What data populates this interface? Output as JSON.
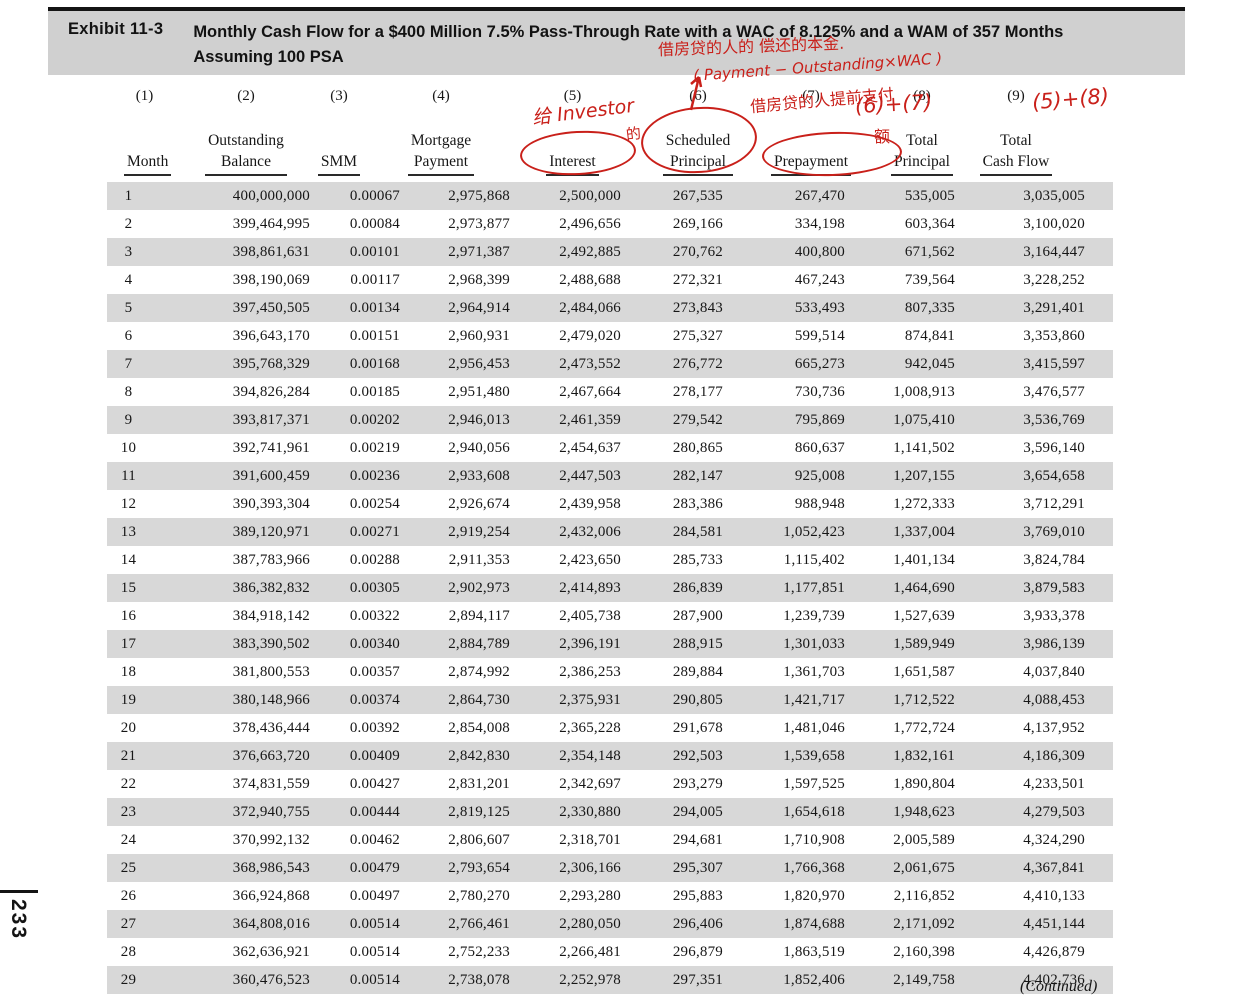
{
  "page": {
    "exhibit_label": "Exhibit 11-3",
    "title_line1": "Monthly Cash Flow for a $400 Million 7.5% Pass-Through Rate with a WAC of 8.125% and a WAM of 357 Months",
    "title_line2": "Assuming 100 PSA",
    "page_number": "233",
    "continued": "(Continued)"
  },
  "annotations": {
    "color": "#c9201a",
    "note_principal": "借房贷的人的 偿还的本金.",
    "formula_scheduled": "( Payment − Outstanding×WAC )",
    "note_interest": "给 Investor",
    "note_interest_suffix": "的",
    "note_prepayment": "借房贷的人提前支付",
    "note_prepayment_suffix": "额",
    "formula_total_principal": "(6)+(7)",
    "formula_total_cashflow": "(5)+(8)"
  },
  "table": {
    "columns": [
      {
        "number": "(1)",
        "line1": "",
        "line2": "Month"
      },
      {
        "number": "(2)",
        "line1": "Outstanding",
        "line2": "Balance"
      },
      {
        "number": "(3)",
        "line1": "",
        "line2": "SMM"
      },
      {
        "number": "(4)",
        "line1": "Mortgage",
        "line2": "Payment"
      },
      {
        "number": "(5)",
        "line1": "",
        "line2": "Interest"
      },
      {
        "number": "(6)",
        "line1": "Scheduled",
        "line2": "Principal"
      },
      {
        "number": "(7)",
        "line1": "",
        "line2": "Prepayment"
      },
      {
        "number": "(8)",
        "line1": "Total",
        "line2": "Principal"
      },
      {
        "number": "(9)",
        "line1": "Total",
        "line2": "Cash Flow"
      }
    ],
    "rows": [
      [
        "1",
        "400,000,000",
        "0.00067",
        "2,975,868",
        "2,500,000",
        "267,535",
        "267,470",
        "535,005",
        "3,035,005"
      ],
      [
        "2",
        "399,464,995",
        "0.00084",
        "2,973,877",
        "2,496,656",
        "269,166",
        "334,198",
        "603,364",
        "3,100,020"
      ],
      [
        "3",
        "398,861,631",
        "0.00101",
        "2,971,387",
        "2,492,885",
        "270,762",
        "400,800",
        "671,562",
        "3,164,447"
      ],
      [
        "4",
        "398,190,069",
        "0.00117",
        "2,968,399",
        "2,488,688",
        "272,321",
        "467,243",
        "739,564",
        "3,228,252"
      ],
      [
        "5",
        "397,450,505",
        "0.00134",
        "2,964,914",
        "2,484,066",
        "273,843",
        "533,493",
        "807,335",
        "3,291,401"
      ],
      [
        "6",
        "396,643,170",
        "0.00151",
        "2,960,931",
        "2,479,020",
        "275,327",
        "599,514",
        "874,841",
        "3,353,860"
      ],
      [
        "7",
        "395,768,329",
        "0.00168",
        "2,956,453",
        "2,473,552",
        "276,772",
        "665,273",
        "942,045",
        "3,415,597"
      ],
      [
        "8",
        "394,826,284",
        "0.00185",
        "2,951,480",
        "2,467,664",
        "278,177",
        "730,736",
        "1,008,913",
        "3,476,577"
      ],
      [
        "9",
        "393,817,371",
        "0.00202",
        "2,946,013",
        "2,461,359",
        "279,542",
        "795,869",
        "1,075,410",
        "3,536,769"
      ],
      [
        "10",
        "392,741,961",
        "0.00219",
        "2,940,056",
        "2,454,637",
        "280,865",
        "860,637",
        "1,141,502",
        "3,596,140"
      ],
      [
        "11",
        "391,600,459",
        "0.00236",
        "2,933,608",
        "2,447,503",
        "282,147",
        "925,008",
        "1,207,155",
        "3,654,658"
      ],
      [
        "12",
        "390,393,304",
        "0.00254",
        "2,926,674",
        "2,439,958",
        "283,386",
        "988,948",
        "1,272,333",
        "3,712,291"
      ],
      [
        "13",
        "389,120,971",
        "0.00271",
        "2,919,254",
        "2,432,006",
        "284,581",
        "1,052,423",
        "1,337,004",
        "3,769,010"
      ],
      [
        "14",
        "387,783,966",
        "0.00288",
        "2,911,353",
        "2,423,650",
        "285,733",
        "1,115,402",
        "1,401,134",
        "3,824,784"
      ],
      [
        "15",
        "386,382,832",
        "0.00305",
        "2,902,973",
        "2,414,893",
        "286,839",
        "1,177,851",
        "1,464,690",
        "3,879,583"
      ],
      [
        "16",
        "384,918,142",
        "0.00322",
        "2,894,117",
        "2,405,738",
        "287,900",
        "1,239,739",
        "1,527,639",
        "3,933,378"
      ],
      [
        "17",
        "383,390,502",
        "0.00340",
        "2,884,789",
        "2,396,191",
        "288,915",
        "1,301,033",
        "1,589,949",
        "3,986,139"
      ],
      [
        "18",
        "381,800,553",
        "0.00357",
        "2,874,992",
        "2,386,253",
        "289,884",
        "1,361,703",
        "1,651,587",
        "4,037,840"
      ],
      [
        "19",
        "380,148,966",
        "0.00374",
        "2,864,730",
        "2,375,931",
        "290,805",
        "1,421,717",
        "1,712,522",
        "4,088,453"
      ],
      [
        "20",
        "378,436,444",
        "0.00392",
        "2,854,008",
        "2,365,228",
        "291,678",
        "1,481,046",
        "1,772,724",
        "4,137,952"
      ],
      [
        "21",
        "376,663,720",
        "0.00409",
        "2,842,830",
        "2,354,148",
        "292,503",
        "1,539,658",
        "1,832,161",
        "4,186,309"
      ],
      [
        "22",
        "374,831,559",
        "0.00427",
        "2,831,201",
        "2,342,697",
        "293,279",
        "1,597,525",
        "1,890,804",
        "4,233,501"
      ],
      [
        "23",
        "372,940,755",
        "0.00444",
        "2,819,125",
        "2,330,880",
        "294,005",
        "1,654,618",
        "1,948,623",
        "4,279,503"
      ],
      [
        "24",
        "370,992,132",
        "0.00462",
        "2,806,607",
        "2,318,701",
        "294,681",
        "1,710,908",
        "2,005,589",
        "4,324,290"
      ],
      [
        "25",
        "368,986,543",
        "0.00479",
        "2,793,654",
        "2,306,166",
        "295,307",
        "1,766,368",
        "2,061,675",
        "4,367,841"
      ],
      [
        "26",
        "366,924,868",
        "0.00497",
        "2,780,270",
        "2,293,280",
        "295,883",
        "1,820,970",
        "2,116,852",
        "4,410,133"
      ],
      [
        "27",
        "364,808,016",
        "0.00514",
        "2,766,461",
        "2,280,050",
        "296,406",
        "1,874,688",
        "2,171,092",
        "4,451,144"
      ],
      [
        "28",
        "362,636,921",
        "0.00514",
        "2,752,233",
        "2,266,481",
        "296,879",
        "1,863,519",
        "2,160,398",
        "4,426,879"
      ],
      [
        "29",
        "360,476,523",
        "0.00514",
        "2,738,078",
        "2,252,978",
        "297,351",
        "1,852,406",
        "2,149,758",
        "4,402,736"
      ]
    ]
  }
}
